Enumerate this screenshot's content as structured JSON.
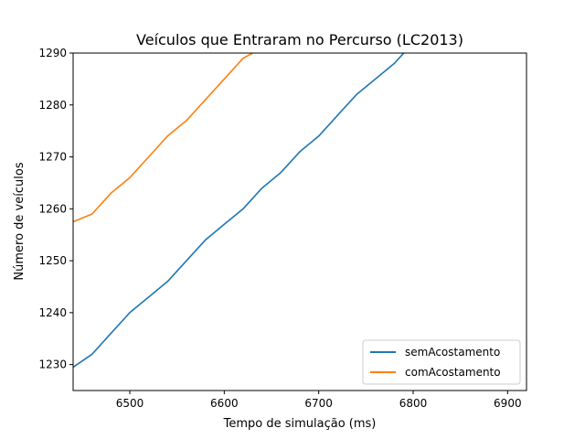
{
  "chart_data": {
    "type": "line",
    "title": "Veículos que Entraram no Percurso (LC2013)",
    "xlabel": "Tempo de simulação (ms)",
    "ylabel": "Número de veículos",
    "xlim": [
      6440,
      6920
    ],
    "ylim": [
      1225,
      1290
    ],
    "xticks": [
      6500,
      6600,
      6700,
      6800,
      6900
    ],
    "yticks": [
      1230,
      1240,
      1250,
      1260,
      1270,
      1280,
      1290
    ],
    "grid": false,
    "legend_position": "lower right",
    "series": [
      {
        "name": "semAcostamento",
        "color": "#1f77b4",
        "x": [
          6440,
          6460,
          6480,
          6500,
          6520,
          6540,
          6560,
          6580,
          6600,
          6620,
          6640,
          6660,
          6680,
          6700,
          6720,
          6740,
          6760,
          6780,
          6790
        ],
        "y": [
          1229.5,
          1232,
          1236,
          1240,
          1243,
          1246,
          1250,
          1254,
          1257,
          1260,
          1264,
          1267,
          1271,
          1274,
          1278,
          1282,
          1285,
          1288,
          1290
        ]
      },
      {
        "name": "comAcostamento",
        "color": "#ff7f0e",
        "x": [
          6440,
          6460,
          6480,
          6500,
          6520,
          6540,
          6560,
          6580,
          6600,
          6620,
          6630
        ],
        "y": [
          1257.5,
          1259,
          1263,
          1266,
          1270,
          1274,
          1277,
          1281,
          1285,
          1289,
          1290
        ]
      }
    ]
  }
}
